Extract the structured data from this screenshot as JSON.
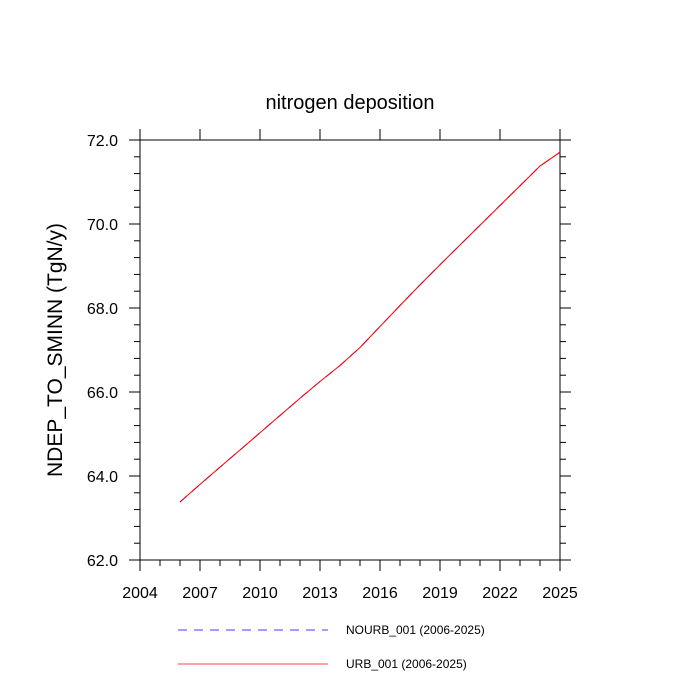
{
  "chart_data": {
    "type": "line",
    "title": "nitrogen deposition",
    "xlabel": "",
    "ylabel": "NDEP_TO_SMINN  (TgN/y)",
    "xlim": [
      2004,
      2025
    ],
    "ylim": [
      62.0,
      72.0
    ],
    "x_ticks": [
      2004,
      2007,
      2010,
      2013,
      2016,
      2019,
      2022,
      2025
    ],
    "x_tick_labels": [
      "2004",
      "2007",
      "2010",
      "2013",
      "2016",
      "2019",
      "2022",
      "2025"
    ],
    "y_ticks": [
      62.0,
      64.0,
      66.0,
      68.0,
      70.0,
      72.0
    ],
    "y_tick_labels": [
      "62.0",
      "64.0",
      "66.0",
      "68.0",
      "70.0",
      "72.0"
    ],
    "grid": false,
    "legend_position": "bottom",
    "x": [
      2006,
      2007,
      2008,
      2009,
      2010,
      2011,
      2012,
      2013,
      2014,
      2015,
      2016,
      2017,
      2018,
      2019,
      2020,
      2021,
      2022,
      2023,
      2024,
      2025
    ],
    "series": [
      {
        "name": "NOURB_001 (2006-2025)",
        "color": "#0000ff",
        "dash": "dashed",
        "values": [
          63.38,
          63.8,
          64.21,
          64.62,
          65.03,
          65.44,
          65.85,
          66.25,
          66.63,
          67.06,
          67.56,
          68.06,
          68.55,
          69.03,
          69.5,
          69.97,
          70.44,
          70.91,
          71.38,
          71.71
        ]
      },
      {
        "name": "URB_001 (2006-2025)",
        "color": "#ff0000",
        "dash": "solid",
        "values": [
          63.38,
          63.8,
          64.21,
          64.62,
          65.03,
          65.44,
          65.85,
          66.25,
          66.63,
          67.06,
          67.56,
          68.06,
          68.55,
          69.03,
          69.5,
          69.97,
          70.44,
          70.91,
          71.38,
          71.71
        ]
      }
    ]
  }
}
